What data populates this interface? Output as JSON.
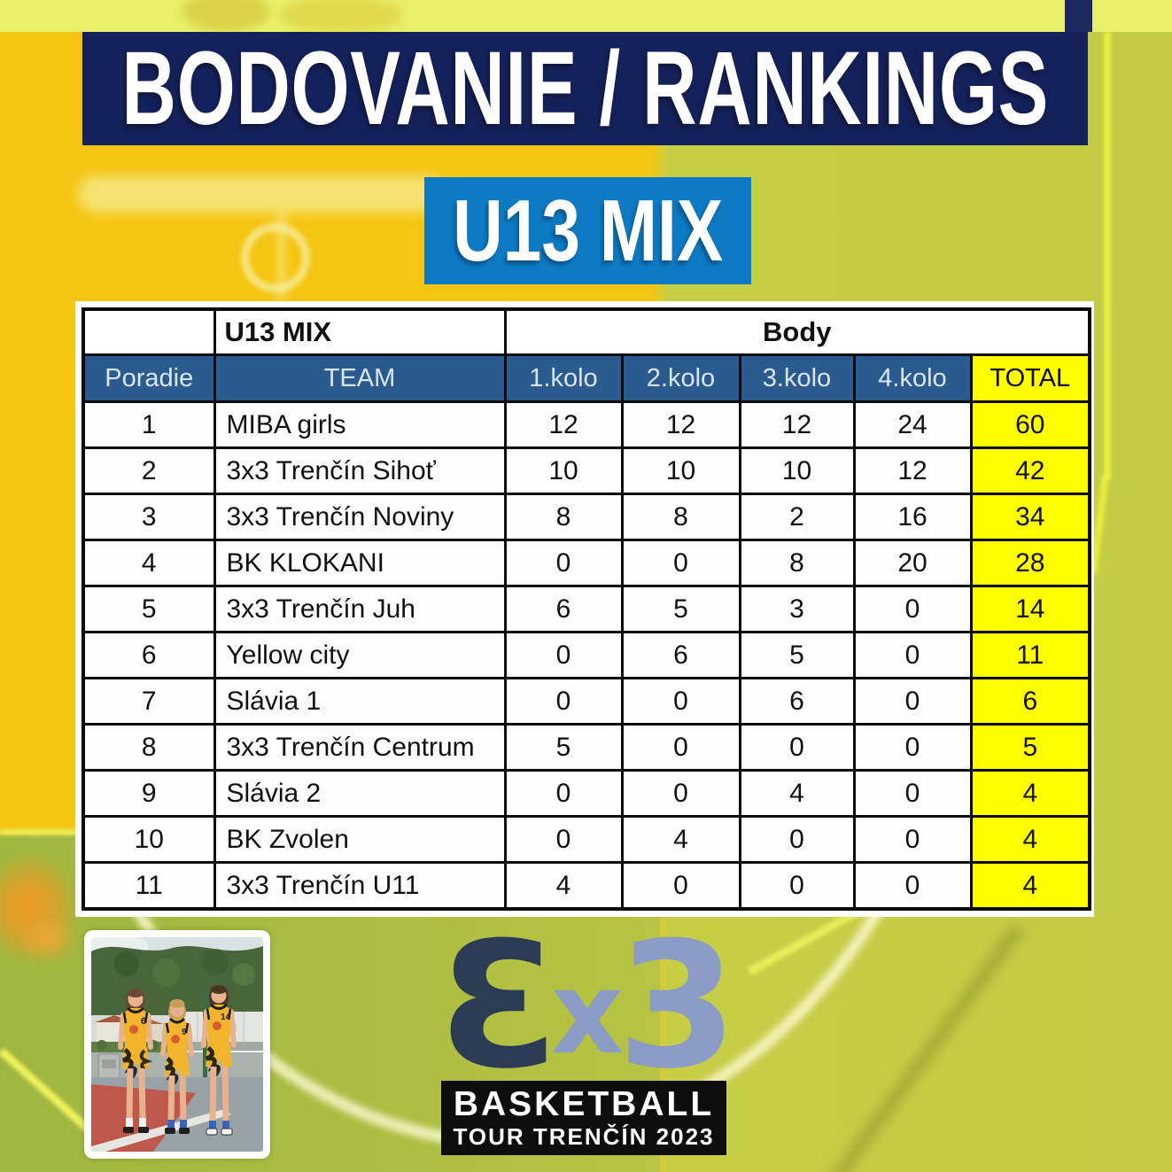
{
  "page": {
    "title": "BODOVANIE / RANKINGS",
    "category": "U13 MIX"
  },
  "table": {
    "group_left": "U13 MIX",
    "group_right": "Body",
    "columns": [
      "Poradie",
      "TEAM",
      "1.kolo",
      "2.kolo",
      "3.kolo",
      "4.kolo",
      "TOTAL"
    ],
    "rows": [
      [
        "1",
        "MIBA girls",
        "12",
        "12",
        "12",
        "24",
        "60"
      ],
      [
        "2",
        "3x3 Trenčín Sihoť",
        "10",
        "10",
        "10",
        "12",
        "42"
      ],
      [
        "3",
        "3x3 Trenčín Noviny",
        "8",
        "8",
        "2",
        "16",
        "34"
      ],
      [
        "4",
        "BK KLOKANI",
        "0",
        "0",
        "8",
        "20",
        "28"
      ],
      [
        "5",
        "3x3 Trenčín Juh",
        "6",
        "5",
        "3",
        "0",
        "14"
      ],
      [
        "6",
        "Yellow city",
        "0",
        "6",
        "5",
        "0",
        "11"
      ],
      [
        "7",
        "Slávia 1",
        "0",
        "0",
        "6",
        "0",
        "6"
      ],
      [
        "8",
        "3x3 Trenčín Centrum",
        "5",
        "0",
        "0",
        "0",
        "5"
      ],
      [
        "9",
        "Slávia 2",
        "0",
        "0",
        "4",
        "0",
        "4"
      ],
      [
        "10",
        "BK Zvolen",
        "0",
        "4",
        "0",
        "0",
        "4"
      ],
      [
        "11",
        "3x3 Trenčín U11",
        "4",
        "0",
        "0",
        "0",
        "4"
      ]
    ]
  },
  "footer": {
    "logo_glyphs": [
      "3",
      "x",
      "3"
    ],
    "line1": "BASKETBALL",
    "line2": "TOUR TRENČÍN 2023"
  },
  "photo": {
    "jersey_numbers": [
      "6",
      "9",
      "14"
    ]
  },
  "colors": {
    "banner_navy": "#15215a",
    "badge_blue": "#0e7ac3",
    "table_header_blue": "#2b5a8e",
    "highlight_yellow": "#ffff00",
    "court_yellow": "#f5c513",
    "court_olive": "#c3cc46"
  }
}
